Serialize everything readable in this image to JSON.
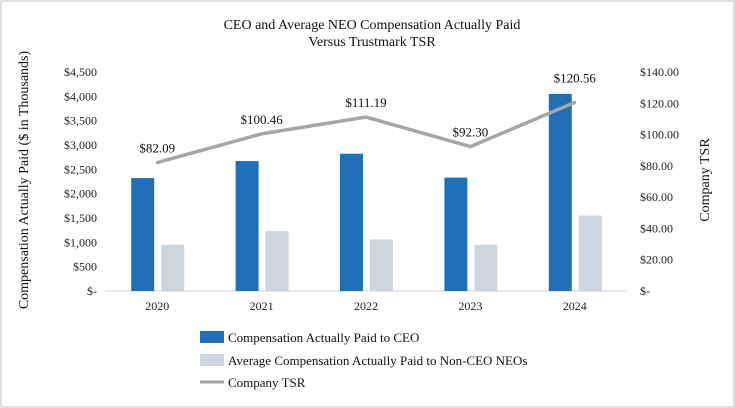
{
  "chart_data": {
    "type": "bar",
    "title_lines": [
      "CEO and Average NEO Compensation Actually Paid",
      "Versus Trustmark TSR"
    ],
    "categories": [
      "2020",
      "2021",
      "2022",
      "2023",
      "2024"
    ],
    "series": [
      {
        "name": "Compensation Actually Paid to CEO",
        "type": "bar",
        "axis": "left",
        "color": "#1f70b8",
        "values": [
          2320,
          2670,
          2820,
          2330,
          4050
        ]
      },
      {
        "name": "Average Compensation Actually Paid to Non-CEO NEOs",
        "type": "bar",
        "axis": "left",
        "color": "#cdd5df",
        "values": [
          950,
          1230,
          1060,
          950,
          1550
        ]
      },
      {
        "name": "Company TSR",
        "type": "line",
        "axis": "right",
        "color": "#a6a6a6",
        "values": [
          82.09,
          100.46,
          111.19,
          92.3,
          120.56
        ],
        "labels": [
          "$82.09",
          "$100.46",
          "$111.19",
          "$92.30",
          "$120.56"
        ]
      }
    ],
    "ylabel": "Compensation Actually Paid ($ in Thousands)",
    "y2label": "Company TSR",
    "ylim": [
      0,
      4500
    ],
    "y2lim": [
      0,
      140
    ],
    "yticks": [
      0,
      500,
      1000,
      1500,
      2000,
      2500,
      3000,
      3500,
      4000,
      4500
    ],
    "ytick_labels": [
      "$-",
      "$500",
      "$1,000",
      "$1,500",
      "$2,000",
      "$2,500",
      "$3,000",
      "$3,500",
      "$4,000",
      "$4,500"
    ],
    "y2ticks": [
      0,
      20,
      40,
      60,
      80,
      100,
      120,
      140
    ],
    "y2tick_labels": [
      "$-",
      "$20.00",
      "$40.00",
      "$60.00",
      "$80.00",
      "$100.00",
      "$120.00",
      "$140.00"
    ],
    "grid": false,
    "legend_position": "bottom"
  }
}
